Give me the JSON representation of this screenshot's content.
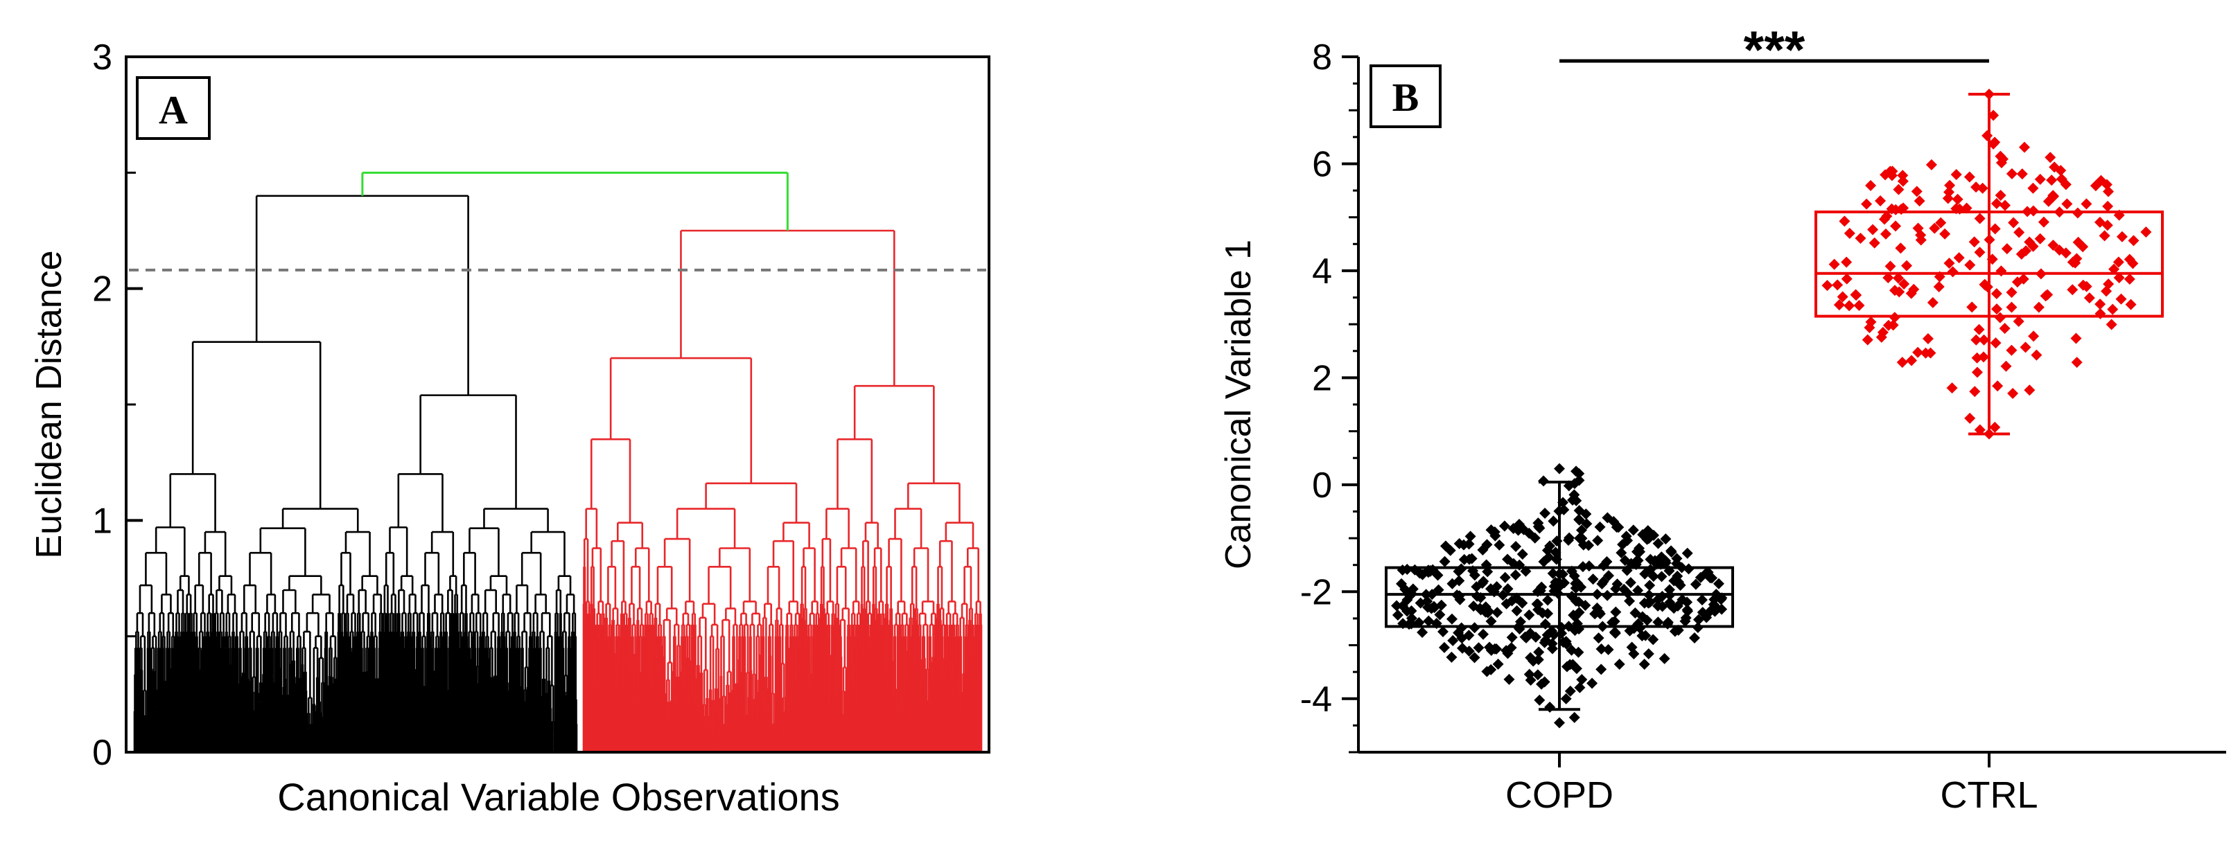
{
  "colors": {
    "axis": "#000000",
    "black_cluster": "#000000",
    "red_cluster": "#e8272a",
    "root_link": "#33dd33",
    "threshold": "#777777",
    "ctrl": "#ee0000",
    "copd": "#000000"
  },
  "chart_data": [
    {
      "type": "dendrogram",
      "panel_label": "A",
      "xlabel": "Canonical Variable Observations",
      "ylabel": "Euclidean Distance",
      "ylim": [
        0,
        3
      ],
      "yticks": [
        "0",
        "1",
        "2",
        "3"
      ],
      "cut_threshold": 2.08,
      "root_height": 2.5,
      "clusters": [
        {
          "name": "black cluster",
          "top_height": 2.4,
          "merge_heights": [
            1.77,
            1.54,
            1.2,
            1.05,
            0.97,
            0.95,
            0.86,
            0.76,
            0.72,
            0.68,
            0.6,
            0.6,
            0.52,
            0.5,
            0.45
          ]
        },
        {
          "name": "red cluster",
          "top_height": 2.25,
          "merge_heights": [
            1.7,
            1.58,
            1.35,
            1.16,
            1.05,
            0.99,
            0.92,
            0.88,
            0.8,
            0.65,
            0.64,
            0.62,
            0.58,
            0.55,
            0.5
          ]
        }
      ]
    },
    {
      "type": "box",
      "panel_label": "B",
      "ylabel": "Canonical Variable 1",
      "ylim": [
        -5,
        8
      ],
      "yticks": [
        "-4",
        "-2",
        "0",
        "2",
        "4",
        "6",
        "8"
      ],
      "categories": [
        "COPD",
        "CTRL"
      ],
      "significance": "***",
      "series": [
        {
          "name": "COPD",
          "q1": -2.65,
          "median": -2.05,
          "q3": -1.55,
          "whisker_low": -4.2,
          "whisker_high": 0.05,
          "min": -4.45,
          "max": 0.3,
          "n_points": 400
        },
        {
          "name": "CTRL",
          "q1": 3.15,
          "median": 3.95,
          "q3": 5.1,
          "whisker_low": 0.95,
          "whisker_high": 7.3,
          "min": 0.95,
          "max": 7.3,
          "n_points": 210
        }
      ]
    }
  ]
}
